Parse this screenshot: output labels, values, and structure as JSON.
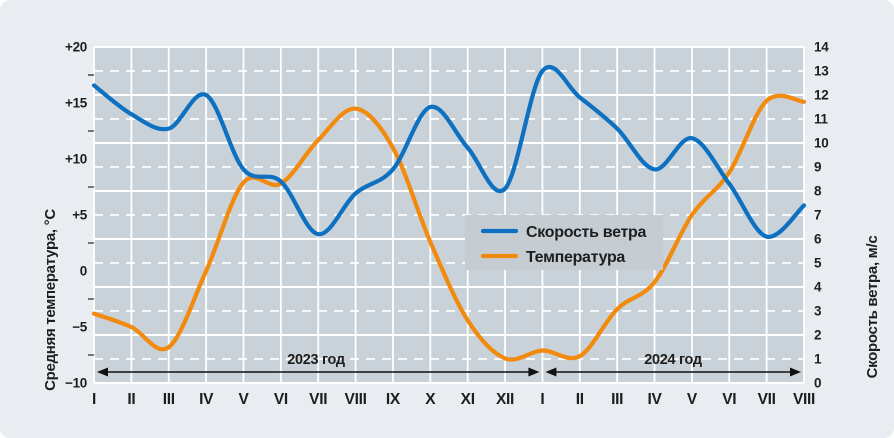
{
  "colors": {
    "page": "#ffffff",
    "card": "#e9edf1",
    "plot_bg": "#c9d2d8",
    "legend_bg": "#c5cdd3",
    "grid": "#ffffff",
    "text": "#1e1e1e",
    "arrow": "#111111",
    "wind_line": "#0e70c0",
    "temp_line": "#f28a0d"
  },
  "chart_data": {
    "type": "line",
    "title": "",
    "categories": [
      "I",
      "II",
      "III",
      "IV",
      "V",
      "VI",
      "VII",
      "VIII",
      "IX",
      "X",
      "XI",
      "XII",
      "I",
      "II",
      "III",
      "IV",
      "V",
      "VI",
      "VII",
      "VIII"
    ],
    "series": [
      {
        "name": "Скорость ветра",
        "axis": "right",
        "color": "#0e70c0",
        "unit": "м/с",
        "values": [
          12.4,
          11.2,
          10.6,
          12.0,
          8.9,
          8.4,
          6.2,
          7.9,
          8.9,
          11.5,
          9.8,
          8.1,
          13.0,
          11.9,
          10.6,
          8.9,
          10.2,
          8.3,
          6.1,
          7.4
        ]
      },
      {
        "name": "Температура",
        "axis": "left",
        "color": "#f28a0d",
        "unit": "°С",
        "values": [
          -3.8,
          -5.0,
          -6.8,
          0.0,
          7.9,
          7.8,
          11.7,
          14.5,
          11.0,
          2.6,
          -4.4,
          -7.8,
          -7.1,
          -7.6,
          -3.4,
          -1.0,
          5.0,
          8.8,
          15.2,
          15.1
        ]
      }
    ],
    "left_axis": {
      "title": "Средняя температура, °С",
      "min": -10,
      "max": 20,
      "tick_step": 5,
      "minor_tick_step": 2.5,
      "tick_labels": [
        "+20",
        "+15",
        "+10",
        "+5",
        "0",
        "−5",
        "−10"
      ],
      "tick_values": [
        20,
        15,
        10,
        5,
        0,
        -5,
        -10
      ]
    },
    "right_axis": {
      "title": "Скорость ветра, м/с",
      "min": 0,
      "max": 14,
      "tick_step": 1,
      "tick_labels": [
        "0",
        "1",
        "2",
        "3",
        "4",
        "5",
        "6",
        "7",
        "8",
        "9",
        "10",
        "11",
        "12",
        "13",
        "14"
      ]
    },
    "grid": {
      "vertical": "per-month solid",
      "horizontal": "solid at even м/с, dashed at odd м/с"
    },
    "legend": {
      "position": "center-right",
      "items": [
        "Скорость ветра",
        "Температура"
      ]
    },
    "year_spans": [
      {
        "label": "2023 год",
        "from_index": 0,
        "to_index": 12
      },
      {
        "label": "2024 год",
        "from_index": 12,
        "to_index": 19
      }
    ]
  }
}
